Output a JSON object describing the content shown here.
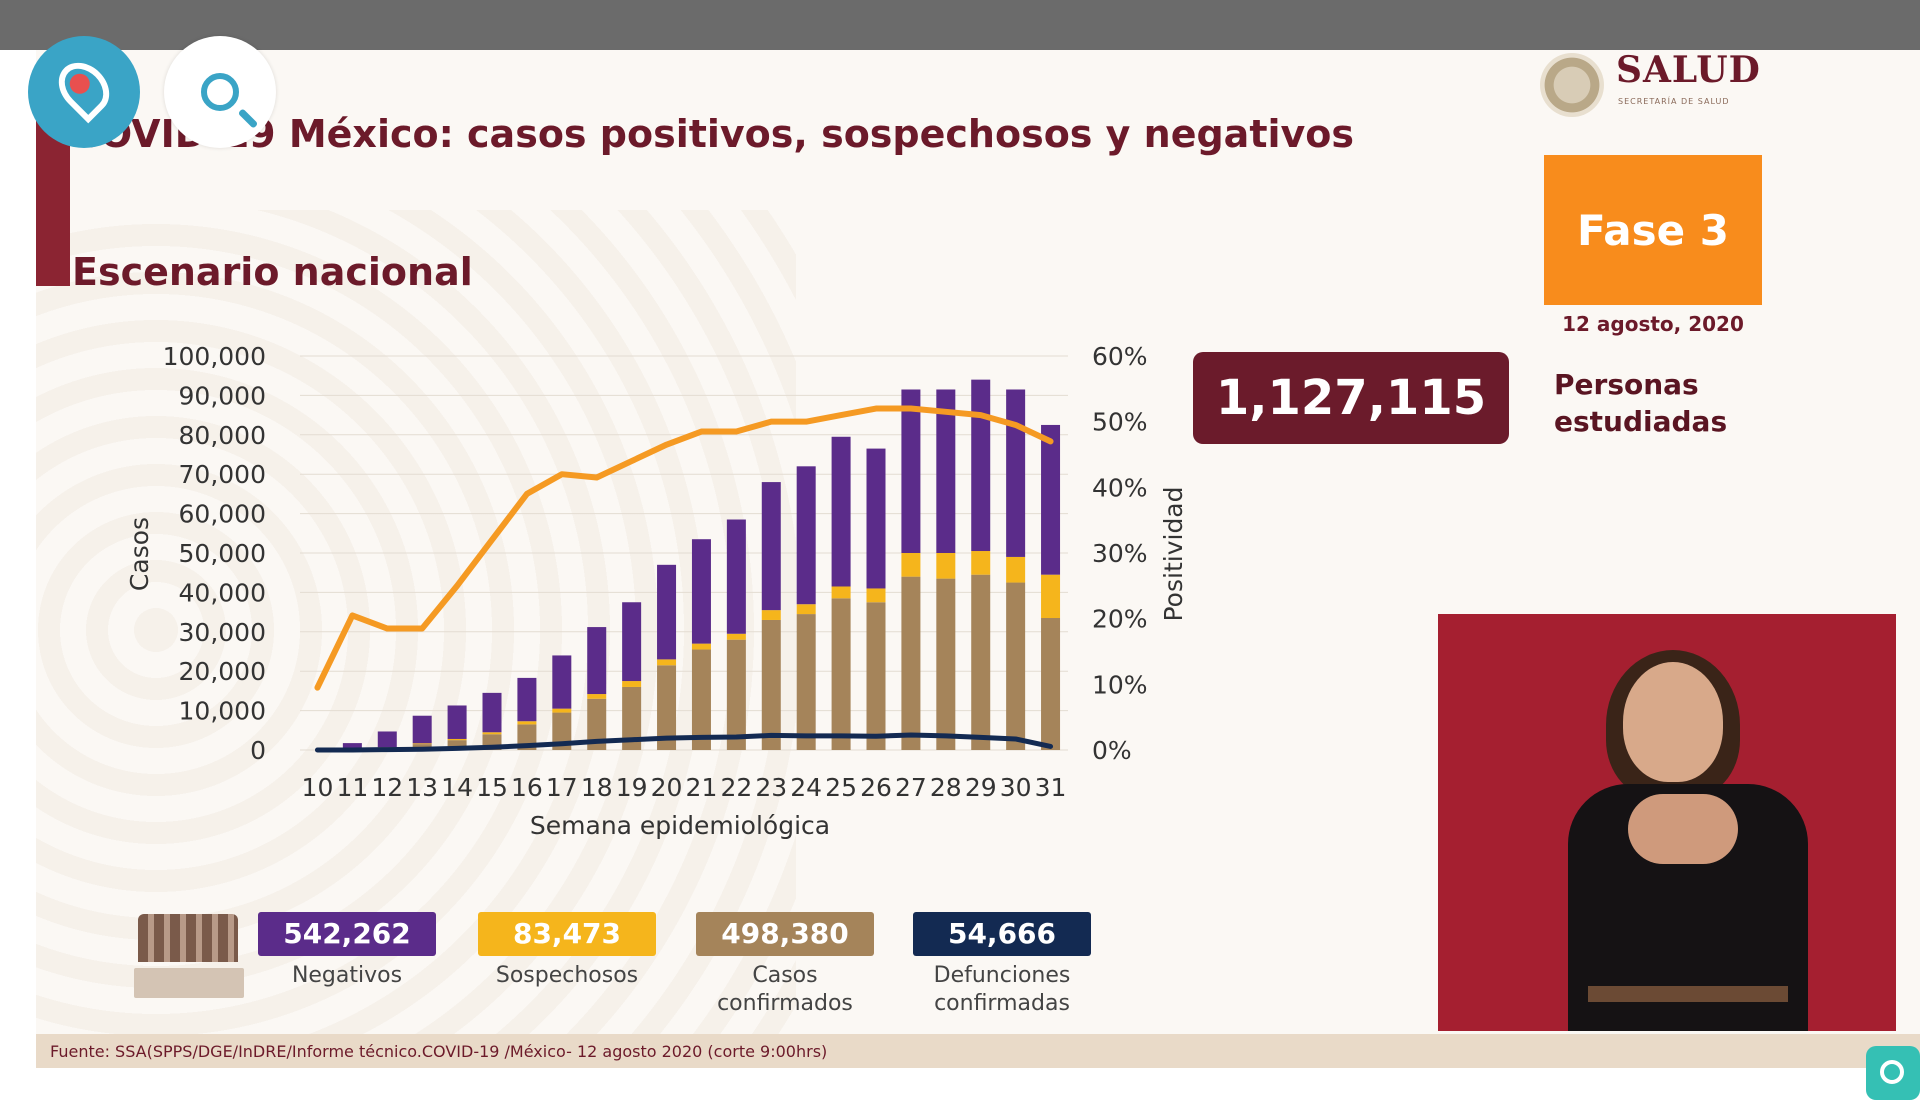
{
  "slide": {
    "title": "COVID-19 México: casos positivos, sospechosos y negativos",
    "subtitle": "Escenario nacional",
    "logo_text": "SALUD",
    "logo_subtext": "SECRETARÍA DE SALUD",
    "phase": "Fase 3",
    "date": "12 agosto, 2020",
    "studied_value": "1,127,115",
    "studied_label": "Personas estudiadas",
    "footer": "Fuente: SSA(SPPS/DGE/InDRE/Informe técnico.COVID-19 /México- 12 agosto 2020 (corte 9:00hrs)"
  },
  "totals": [
    {
      "value": "542,262",
      "label": "Negativos",
      "color": "#5b2c8a"
    },
    {
      "value": "83,473",
      "label": "Sospechosos",
      "color": "#f5b51c"
    },
    {
      "value": "498,380",
      "label": "Casos confirmados",
      "color": "#a5845a"
    },
    {
      "value": "54,666",
      "label": "Defunciones confirmadas",
      "color": "#132a52"
    }
  ],
  "chart_data": {
    "type": "bar",
    "stacked": true,
    "categories": [
      "10",
      "11",
      "12",
      "13",
      "14",
      "15",
      "16",
      "17",
      "18",
      "19",
      "20",
      "21",
      "22",
      "23",
      "24",
      "25",
      "26",
      "27",
      "28",
      "29",
      "30",
      "31"
    ],
    "series": [
      {
        "name": "Casos confirmados",
        "color": "#a5845a",
        "values": [
          0,
          200,
          600,
          1500,
          2500,
          4000,
          6500,
          9500,
          13000,
          16000,
          21500,
          25500,
          28000,
          33000,
          34500,
          38500,
          37500,
          44000,
          43500,
          44500,
          42500,
          33500
        ]
      },
      {
        "name": "Sospechosos",
        "color": "#f5b51c",
        "values": [
          0,
          50,
          100,
          200,
          300,
          500,
          800,
          1000,
          1200,
          1500,
          1500,
          1500,
          1500,
          2500,
          2500,
          3000,
          3500,
          6000,
          6500,
          6000,
          6500,
          11000
        ]
      },
      {
        "name": "Negativos",
        "color": "#5b2c8a",
        "values": [
          0,
          1500,
          4000,
          7000,
          8500,
          10000,
          11000,
          13500,
          17000,
          20000,
          24000,
          26500,
          29000,
          32500,
          35000,
          38000,
          35500,
          41500,
          41500,
          43500,
          42500,
          38000
        ]
      },
      {
        "name": "Positividad",
        "type": "line",
        "axis": "right",
        "color": "#f59a23",
        "values": [
          9.5,
          20.5,
          18.5,
          18.5,
          25,
          32,
          39,
          42,
          41.5,
          44,
          46.5,
          48.5,
          48.5,
          50,
          50,
          51,
          52,
          52,
          51.5,
          51,
          49.5,
          47
        ]
      },
      {
        "name": "Defunciones confirmadas",
        "type": "line",
        "color": "#132a52",
        "values": [
          0,
          0,
          100,
          200,
          400,
          700,
          1100,
          1600,
          2200,
          2600,
          3000,
          3200,
          3300,
          3700,
          3600,
          3600,
          3500,
          3800,
          3600,
          3200,
          2800,
          900
        ]
      }
    ],
    "xlabel": "Semana epidemiológica",
    "ylabel": "Casos",
    "y2label": "Positividad",
    "ylim": [
      0,
      100000
    ],
    "y2lim": [
      0,
      60
    ],
    "yticks": [
      "0",
      "10,000",
      "20,000",
      "30,000",
      "40,000",
      "50,000",
      "60,000",
      "70,000",
      "80,000",
      "90,000",
      "100,000"
    ],
    "y2ticks": [
      "0%",
      "10%",
      "20%",
      "30%",
      "40%",
      "50%",
      "60%"
    ],
    "grid": true
  },
  "controls": {
    "periscope_icon": "periscope-icon",
    "search_icon": "search-icon",
    "camera_icon": "camera-icon"
  }
}
